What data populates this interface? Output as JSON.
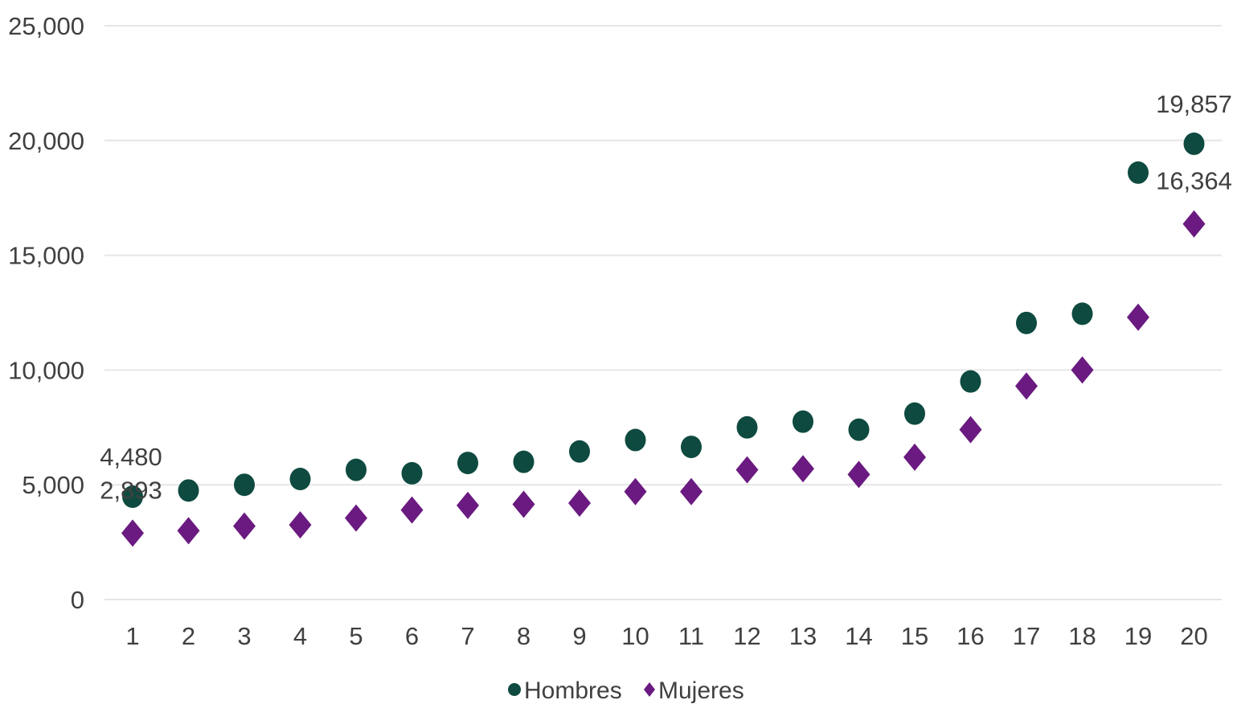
{
  "chart_data": {
    "type": "scatter",
    "title": "",
    "xlabel": "",
    "ylabel": "",
    "x": [
      1,
      2,
      3,
      4,
      5,
      6,
      7,
      8,
      9,
      10,
      11,
      12,
      13,
      14,
      15,
      16,
      17,
      18,
      19,
      20
    ],
    "ylim": [
      0,
      25000
    ],
    "y_ticks": [
      0,
      5000,
      10000,
      15000,
      20000,
      25000
    ],
    "y_tick_labels": [
      "0",
      "5,000",
      "10,000",
      "15,000",
      "20,000",
      "25,000"
    ],
    "grid": true,
    "legend_position": "bottom",
    "series": [
      {
        "name": "Hombres",
        "marker": "circle",
        "color": "#0e4a3f",
        "values": [
          4480,
          4750,
          5000,
          5250,
          5650,
          5500,
          5950,
          6000,
          6450,
          6950,
          6650,
          7500,
          7750,
          7400,
          8100,
          9500,
          12050,
          12450,
          18600,
          19857
        ]
      },
      {
        "name": "Mujeres",
        "marker": "diamond",
        "color": "#6a1a80",
        "values": [
          2893,
          3000,
          3200,
          3250,
          3550,
          3900,
          4100,
          4150,
          4200,
          4700,
          4700,
          5650,
          5700,
          5450,
          6200,
          7400,
          9300,
          10000,
          12300,
          16364
        ]
      }
    ],
    "data_labels": [
      {
        "series": "Hombres",
        "x": 1,
        "text": "4,480"
      },
      {
        "series": "Mujeres",
        "x": 1,
        "text": "2,893"
      },
      {
        "series": "Hombres",
        "x": 20,
        "text": "19,857"
      },
      {
        "series": "Mujeres",
        "x": 20,
        "text": "16,364"
      }
    ]
  }
}
